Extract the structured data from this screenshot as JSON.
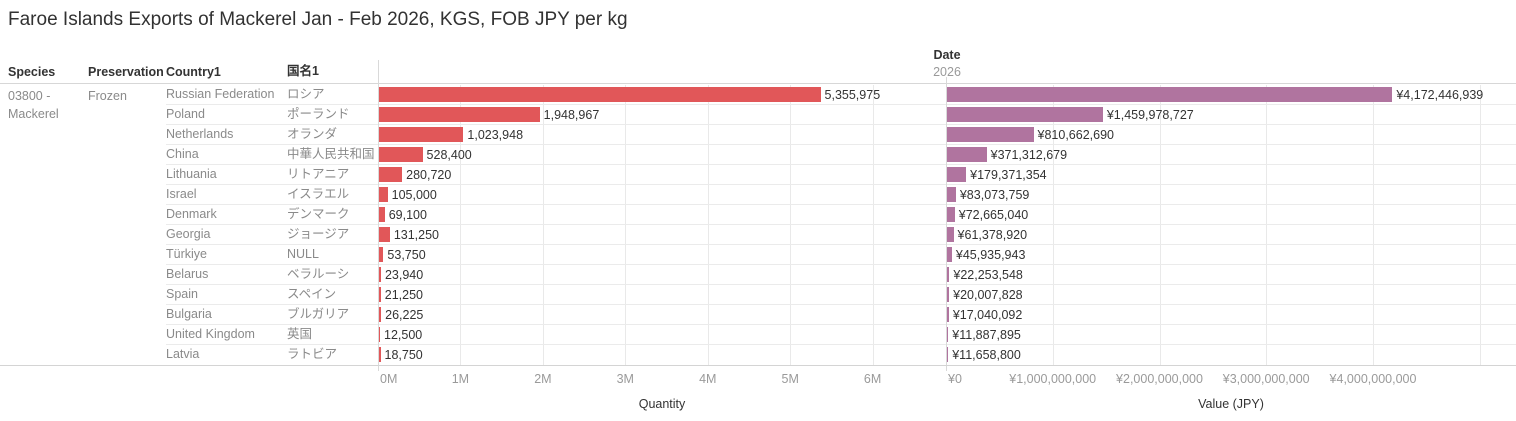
{
  "title": "Faroe Islands Exports of Mackerel Jan - Feb 2026, KGS, FOB JPY per kg",
  "header": {
    "species": "Species",
    "preservation": "Preservation",
    "country1": "Country1",
    "kokumei1": "国名1",
    "date": "Date",
    "year": "2026"
  },
  "group": {
    "species": "03800 - Mackerel",
    "preservation": "Frozen"
  },
  "colors": {
    "quantity_bar": "#e15759",
    "value_bar": "#b0749f",
    "text_dark": "#333333",
    "text_gray": "#8a8a8a",
    "gridline": "#e9e9e9"
  },
  "rows": [
    {
      "country": "Russian Federation",
      "jp": "ロシア",
      "quantity": 5355975,
      "quantity_label": "5,355,975",
      "value": 4172446939,
      "value_label": "¥4,172,446,939"
    },
    {
      "country": "Poland",
      "jp": "ポーランド",
      "quantity": 1948967,
      "quantity_label": "1,948,967",
      "value": 1459978727,
      "value_label": "¥1,459,978,727"
    },
    {
      "country": "Netherlands",
      "jp": "オランダ",
      "quantity": 1023948,
      "quantity_label": "1,023,948",
      "value": 810662690,
      "value_label": "¥810,662,690"
    },
    {
      "country": "China",
      "jp": "中華人民共和国",
      "quantity": 528400,
      "quantity_label": "528,400",
      "value": 371312679,
      "value_label": "¥371,312,679"
    },
    {
      "country": "Lithuania",
      "jp": "リトアニア",
      "quantity": 280720,
      "quantity_label": "280,720",
      "value": 179371354,
      "value_label": "¥179,371,354"
    },
    {
      "country": "Israel",
      "jp": "イスラエル",
      "quantity": 105000,
      "quantity_label": "105,000",
      "value": 83073759,
      "value_label": "¥83,073,759"
    },
    {
      "country": "Denmark",
      "jp": "デンマーク",
      "quantity": 69100,
      "quantity_label": "69,100",
      "value": 72665040,
      "value_label": "¥72,665,040"
    },
    {
      "country": "Georgia",
      "jp": "ジョージア",
      "quantity": 131250,
      "quantity_label": "131,250",
      "value": 61378920,
      "value_label": "¥61,378,920"
    },
    {
      "country": "Türkiye",
      "jp": "NULL",
      "quantity": 53750,
      "quantity_label": "53,750",
      "value": 45935943,
      "value_label": "¥45,935,943"
    },
    {
      "country": "Belarus",
      "jp": "ベラルーシ",
      "quantity": 23940,
      "quantity_label": "23,940",
      "value": 22253548,
      "value_label": "¥22,253,548"
    },
    {
      "country": "Spain",
      "jp": "スペイン",
      "quantity": 21250,
      "quantity_label": "21,250",
      "value": 20007828,
      "value_label": "¥20,007,828"
    },
    {
      "country": "Bulgaria",
      "jp": "ブルガリア",
      "quantity": 26225,
      "quantity_label": "26,225",
      "value": 17040092,
      "value_label": "¥17,040,092"
    },
    {
      "country": "United Kingdom",
      "jp": "英国",
      "quantity": 12500,
      "quantity_label": "12,500",
      "value": 11887895,
      "value_label": "¥11,887,895"
    },
    {
      "country": "Latvia",
      "jp": "ラトビア",
      "quantity": 18750,
      "quantity_label": "18,750",
      "value": 11658800,
      "value_label": "¥11,658,800"
    }
  ],
  "quantity_axis": {
    "title": "Quantity",
    "max": 6890000,
    "ticks": [
      {
        "v": 0,
        "label": "0M"
      },
      {
        "v": 1000000,
        "label": "1M"
      },
      {
        "v": 2000000,
        "label": "2M"
      },
      {
        "v": 3000000,
        "label": "3M"
      },
      {
        "v": 4000000,
        "label": "4M"
      },
      {
        "v": 5000000,
        "label": "5M"
      },
      {
        "v": 6000000,
        "label": "6M"
      }
    ]
  },
  "value_axis": {
    "title": "Value (JPY)",
    "max": 5340000000,
    "ticks": [
      {
        "v": 0,
        "label": "¥0"
      },
      {
        "v": 1000000000,
        "label": "¥1,000,000,000"
      },
      {
        "v": 2000000000,
        "label": "¥2,000,000,000"
      },
      {
        "v": 3000000000,
        "label": "¥3,000,000,000"
      },
      {
        "v": 4000000000,
        "label": "¥4,000,000,000"
      },
      {
        "v": 5000000000,
        "label": ""
      }
    ]
  },
  "chart_data": {
    "type": "bar",
    "orientation": "horizontal",
    "title": "Faroe Islands Exports of Mackerel Jan - Feb 2026, KGS, FOB JPY per kg",
    "categories": [
      "Russian Federation",
      "Poland",
      "Netherlands",
      "China",
      "Lithuania",
      "Israel",
      "Denmark",
      "Georgia",
      "Türkiye",
      "Belarus",
      "Spain",
      "Bulgaria",
      "United Kingdom",
      "Latvia"
    ],
    "categories_jp": [
      "ロシア",
      "ポーランド",
      "オランダ",
      "中華人民共和国",
      "リトアニア",
      "イスラエル",
      "デンマーク",
      "ジョージア",
      "NULL",
      "ベラルーシ",
      "スペイン",
      "ブルガリア",
      "英国",
      "ラトビア"
    ],
    "series": [
      {
        "name": "Quantity",
        "color": "#e15759",
        "xlim": [
          0,
          6890000
        ],
        "tick_labels": [
          "0M",
          "1M",
          "2M",
          "3M",
          "4M",
          "5M",
          "6M"
        ],
        "values": [
          5355975,
          1948967,
          1023948,
          528400,
          280720,
          105000,
          69100,
          131250,
          53750,
          23940,
          21250,
          26225,
          12500,
          18750
        ]
      },
      {
        "name": "Value (JPY)",
        "color": "#b0749f",
        "xlim": [
          0,
          5340000000
        ],
        "tick_labels": [
          "¥0",
          "¥1,000,000,000",
          "¥2,000,000,000",
          "¥3,000,000,000",
          "¥4,000,000,000"
        ],
        "values": [
          4172446939,
          1459978727,
          810662690,
          371312679,
          179371354,
          83073759,
          72665040,
          61378920,
          45935943,
          22253548,
          20007828,
          17040092,
          11887895,
          11658800
        ]
      }
    ],
    "grid": true,
    "legend": false,
    "facets": {
      "species": "03800 - Mackerel",
      "preservation": "Frozen",
      "date": "2026"
    }
  }
}
